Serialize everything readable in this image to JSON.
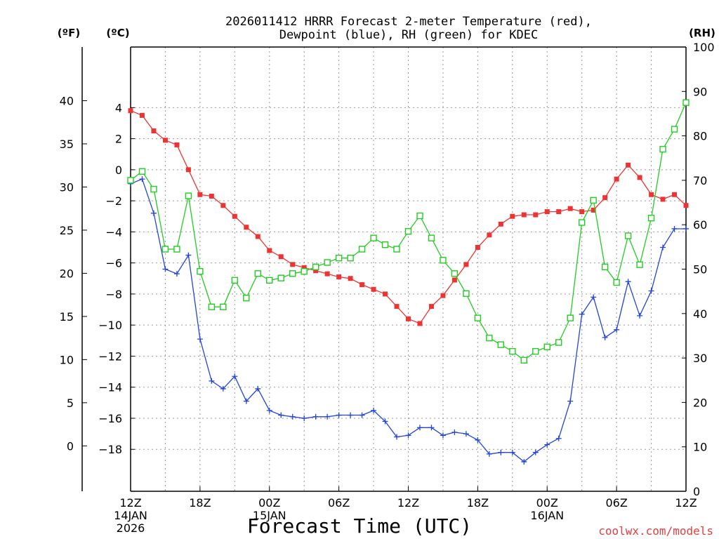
{
  "chart_data": {
    "type": "line",
    "title_line1": "2026011412 HRRR Forecast 2-meter Temperature (red),",
    "title_line2": "Dewpoint (blue), RH (green) for KDEC",
    "xlabel": "Forecast Time (UTC)",
    "watermark": "coolwx.com/models",
    "axis_units": {
      "fahrenheit": "(ºF)",
      "celsius": "(ºC)",
      "rh": "(RH)"
    },
    "celsius_ylim": [
      -20.7,
      7.9
    ],
    "rh_ylim": [
      0,
      100
    ],
    "fahrenheit_ticks": [
      "40",
      "35",
      "30",
      "25",
      "20",
      "15",
      "10",
      "5",
      "0"
    ],
    "fahrenheit_tick_values": [
      40,
      35,
      30,
      25,
      20,
      15,
      10,
      5,
      0
    ],
    "celsius_ticks": [
      "4",
      "2",
      "0",
      "−2",
      "−4",
      "−6",
      "−8",
      "−10",
      "−12",
      "−14",
      "−16",
      "−18"
    ],
    "celsius_tick_values": [
      4,
      2,
      0,
      -2,
      -4,
      -6,
      -8,
      -10,
      -12,
      -14,
      -16,
      -18
    ],
    "rh_ticks": [
      "100",
      "90",
      "80",
      "70",
      "60",
      "50",
      "40",
      "30",
      "20",
      "10",
      "0"
    ],
    "rh_tick_values": [
      100,
      90,
      80,
      70,
      60,
      50,
      40,
      30,
      20,
      10,
      0
    ],
    "x_hours_range": [
      0,
      48
    ],
    "x_ticks": [
      "12Z",
      "18Z",
      "00Z",
      "06Z",
      "12Z",
      "18Z",
      "00Z",
      "06Z",
      "12Z"
    ],
    "x_tick_hours": [
      0,
      6,
      12,
      18,
      24,
      30,
      36,
      42,
      48
    ],
    "date_labels": [
      {
        "hour": 0,
        "line1": "14JAN",
        "line2": "2026"
      },
      {
        "hour": 12,
        "line1": "15JAN",
        "line2": ""
      },
      {
        "hour": 36,
        "line1": "16JAN",
        "line2": ""
      }
    ],
    "series": [
      {
        "name": "Temperature",
        "axis": "celsius",
        "color": "#ee3333",
        "marker": "filled-square",
        "values": [
          3.8,
          3.5,
          2.5,
          1.9,
          1.6,
          0,
          -1.6,
          -1.7,
          -2.3,
          -3,
          -3.7,
          -4.3,
          -5.2,
          -5.6,
          -6.1,
          -6.3,
          -6.5,
          -6.7,
          -6.9,
          -7.0,
          -7.4,
          -7.7,
          -8.0,
          -8.8,
          -9.6,
          -9.9,
          -8.8,
          -8.1,
          -7.1,
          -6.1,
          -5.0,
          -4.2,
          -3.5,
          -3.0,
          -2.9,
          -2.9,
          -2.7,
          -2.7,
          -2.5,
          -2.7,
          -2.6,
          -1.8,
          -0.6,
          0.3,
          -0.5,
          -1.6,
          -1.9,
          -1.6,
          -2.3
        ]
      },
      {
        "name": "Dewpoint",
        "axis": "celsius",
        "color": "#2244dd",
        "marker": "plus",
        "values": [
          -0.9,
          -0.6,
          -2.8,
          -6.4,
          -6.7,
          -5.5,
          -10.9,
          -13.6,
          -14.1,
          -13.3,
          -14.9,
          -14.1,
          -15.5,
          -15.8,
          -15.9,
          -16.0,
          -15.9,
          -15.9,
          -15.8,
          -15.8,
          -15.8,
          -15.5,
          -16.2,
          -17.2,
          -17.1,
          -16.6,
          -16.6,
          -17.1,
          -16.9,
          -17.0,
          -17.4,
          -18.3,
          -18.2,
          -18.2,
          -18.8,
          -18.2,
          -17.7,
          -17.3,
          -14.9,
          -9.3,
          -8.2,
          -10.8,
          -10.3,
          -7.2,
          -9.4,
          -7.8,
          -5.0,
          -3.8,
          -3.8
        ]
      },
      {
        "name": "RH",
        "axis": "rh",
        "color": "#22cc22",
        "marker": "open-square",
        "values": [
          70,
          72,
          68,
          54.5,
          54.5,
          66.5,
          49.5,
          41.5,
          41.5,
          47.5,
          43.5,
          49,
          47.5,
          48,
          49,
          49.5,
          50.5,
          51.5,
          52.5,
          52.5,
          54.5,
          57,
          55.5,
          54.5,
          58.5,
          62,
          57,
          52,
          49,
          44.5,
          39,
          34.5,
          33,
          31.5,
          29.5,
          31.5,
          32.5,
          33.5,
          39,
          60.5,
          65.5,
          50.5,
          47,
          57.5,
          51,
          61.5,
          77,
          81.5,
          87.5
        ]
      }
    ]
  }
}
